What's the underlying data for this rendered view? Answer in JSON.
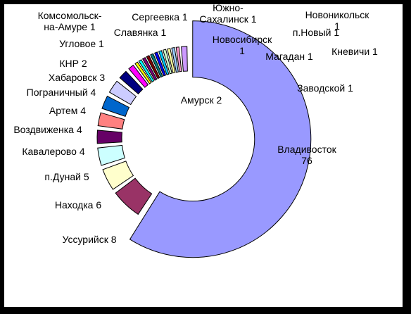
{
  "chart_data": {
    "type": "pie",
    "style": "exploded-donut",
    "title": "",
    "legend": "none",
    "slices": [
      {
        "name": "Владивосток",
        "value": 76,
        "color": "#9999FF"
      },
      {
        "name": "Уссурийск",
        "value": 8,
        "color": "#993366"
      },
      {
        "name": "Находка",
        "value": 6,
        "color": "#FFFFCC"
      },
      {
        "name": "п.Дунай",
        "value": 5,
        "color": "#CCFFFF"
      },
      {
        "name": "Кавалерово",
        "value": 4,
        "color": "#660066"
      },
      {
        "name": "Воздвиженка",
        "value": 4,
        "color": "#FF8080"
      },
      {
        "name": "Артем",
        "value": 4,
        "color": "#0066CC"
      },
      {
        "name": "Пограничный",
        "value": 4,
        "color": "#CCCCFF"
      },
      {
        "name": "Хабаровск",
        "value": 3,
        "color": "#000080"
      },
      {
        "name": "КНР",
        "value": 2,
        "color": "#FF00FF"
      },
      {
        "name": "Комсомольск-на-Амуре",
        "value": 1,
        "color": "#FFFF00"
      },
      {
        "name": "Угловое",
        "value": 1,
        "color": "#00FFFF"
      },
      {
        "name": "Славянка",
        "value": 1,
        "color": "#800080"
      },
      {
        "name": "Сергеевка",
        "value": 1,
        "color": "#800000"
      },
      {
        "name": "Южно-Сахалинск",
        "value": 1,
        "color": "#008080"
      },
      {
        "name": "Новосибирск",
        "value": 1,
        "color": "#0000FF"
      },
      {
        "name": "Магадан",
        "value": 1,
        "color": "#00CCFF"
      },
      {
        "name": "п.Новый",
        "value": 1,
        "color": "#CCFFCC"
      },
      {
        "name": "Новоникольск",
        "value": 1,
        "color": "#FFFF99"
      },
      {
        "name": "Кневичи",
        "value": 1,
        "color": "#99CCFF"
      },
      {
        "name": "Заводской",
        "value": 1,
        "color": "#FF99CC"
      },
      {
        "name": "Амурск",
        "value": 2,
        "color": "#CC99FF"
      }
    ],
    "labels": [
      {
        "lines": [
          "Владивосток",
          "76"
        ]
      },
      {
        "lines": [
          "Уссурийск 8"
        ]
      },
      {
        "lines": [
          "Находка 6"
        ]
      },
      {
        "lines": [
          "п.Дунай 5"
        ]
      },
      {
        "lines": [
          "Кавалерово 4"
        ]
      },
      {
        "lines": [
          "Воздвиженка 4"
        ]
      },
      {
        "lines": [
          "Артем 4"
        ]
      },
      {
        "lines": [
          "Пограничный 4"
        ]
      },
      {
        "lines": [
          "Хабаровск 3"
        ]
      },
      {
        "lines": [
          "КНР 2"
        ]
      },
      {
        "lines": [
          "Комсомольск-",
          "на-Амуре 1"
        ]
      },
      {
        "lines": [
          "Угловое 1"
        ]
      },
      {
        "lines": [
          "Славянка 1"
        ]
      },
      {
        "lines": [
          "Сергеевка  1"
        ]
      },
      {
        "lines": [
          "Южно-",
          "Сахалинск 1"
        ]
      },
      {
        "lines": [
          "Новосибирск",
          "1"
        ]
      },
      {
        "lines": [
          "Магадан 1"
        ]
      },
      {
        "lines": [
          "п.Новый 1"
        ]
      },
      {
        "lines": [
          "Новоникольск",
          "1"
        ]
      },
      {
        "lines": [
          "Кневичи 1"
        ]
      },
      {
        "lines": [
          "Заводской 1"
        ]
      },
      {
        "lines": [
          "Амурск 2"
        ]
      }
    ]
  }
}
